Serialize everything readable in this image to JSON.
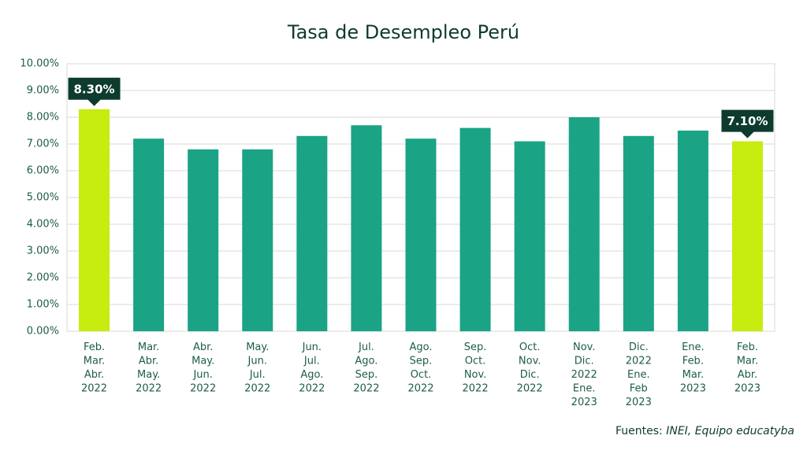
{
  "chart_data": {
    "type": "bar",
    "title": "Tasa de Desempleo Perú",
    "categories": [
      [
        "Feb.",
        "Mar.",
        "Abr.",
        "2022"
      ],
      [
        "Mar.",
        "Abr.",
        "May.",
        "2022"
      ],
      [
        "Abr.",
        "May.",
        "Jun.",
        "2022"
      ],
      [
        "May.",
        "Jun.",
        "Jul.",
        "2022"
      ],
      [
        "Jun.",
        "Jul.",
        "Ago.",
        "2022"
      ],
      [
        "Jul.",
        "Ago.",
        "Sep.",
        "2022"
      ],
      [
        "Ago.",
        "Sep.",
        "Oct.",
        "2022"
      ],
      [
        "Sep.",
        "Oct.",
        "Nov.",
        "2022"
      ],
      [
        "Oct.",
        "Nov.",
        "Dic.",
        "2022"
      ],
      [
        "Nov.",
        "Dic.",
        "2022",
        "Ene.",
        "2023"
      ],
      [
        "Dic.",
        "2022",
        "Ene.",
        "Feb",
        "2023"
      ],
      [
        "Ene.",
        "Feb.",
        "Mar.",
        "2023"
      ],
      [
        "Feb.",
        "Mar.",
        "Abr.",
        "2023"
      ]
    ],
    "values": [
      8.3,
      7.2,
      6.8,
      6.8,
      7.3,
      7.7,
      7.2,
      7.6,
      7.1,
      8.0,
      7.3,
      7.5,
      7.1
    ],
    "value_labels": [
      "8.30%",
      null,
      null,
      null,
      null,
      null,
      null,
      null,
      null,
      null,
      null,
      null,
      "7.10%"
    ],
    "colors": [
      "#c6ec10",
      "#1ba385",
      "#1ba385",
      "#1ba385",
      "#1ba385",
      "#1ba385",
      "#1ba385",
      "#1ba385",
      "#1ba385",
      "#1ba385",
      "#1ba385",
      "#1ba385",
      "#c6ec10"
    ],
    "ylim": [
      0,
      10
    ],
    "yticks": [
      {
        "value": 0,
        "label": "0.00%"
      },
      {
        "value": 1,
        "label": "1.00%"
      },
      {
        "value": 2,
        "label": "2.00%"
      },
      {
        "value": 3,
        "label": "3.00%"
      },
      {
        "value": 4,
        "label": "4.00%"
      },
      {
        "value": 5,
        "label": "5.00%"
      },
      {
        "value": 6,
        "label": "6.00%"
      },
      {
        "value": 7,
        "label": "7.00%"
      },
      {
        "value": 8,
        "label": "8.00%"
      },
      {
        "value": 9,
        "label": "9.00%"
      },
      {
        "value": 10,
        "label": "10.00%"
      }
    ],
    "grid": true,
    "source_label": "Fuentes:",
    "source": "INEI, Equipo educatyba"
  }
}
